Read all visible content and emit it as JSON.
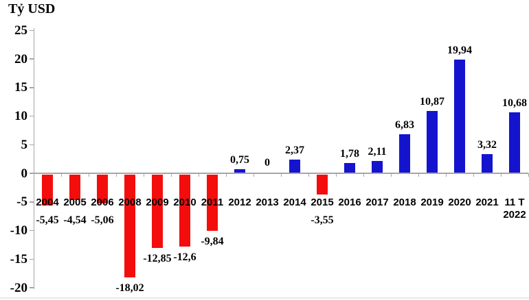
{
  "title": "Tỷ USD",
  "colors": {
    "positive_bar": "#1414CE",
    "negative_bar": "#F40D0D",
    "axis": "#A6A6A6",
    "text": "#000000",
    "background": "#FFFFFF"
  },
  "chart_data": {
    "type": "bar",
    "title": "Tỷ USD",
    "ylabel": "Tỷ USD",
    "ylim": [
      -20,
      25
    ],
    "ytick_step": 5,
    "yticks": [
      25,
      20,
      15,
      10,
      5,
      0,
      -5,
      -10,
      -15,
      -20
    ],
    "grid": false,
    "legend": "none",
    "categories": [
      "2004",
      "2005",
      "2006",
      "2008",
      "2009",
      "2010",
      "2011",
      "2012",
      "2013",
      "2014",
      "2015",
      "2016",
      "2017",
      "2018",
      "2019",
      "2020",
      "2021",
      "11 T\n2022"
    ],
    "values": [
      -5.45,
      -4.54,
      -5.06,
      -18.02,
      -12.85,
      -12.6,
      -9.84,
      0.75,
      0,
      2.37,
      -3.55,
      1.78,
      2.11,
      6.83,
      10.87,
      19.94,
      3.32,
      10.68
    ],
    "value_labels": [
      "-5,45",
      "-4,54",
      "-5,06",
      "-18,02",
      "-12,85",
      "-12,6",
      "-9,84",
      "0,75",
      "0",
      "2,37",
      "-3,55",
      "1,78",
      "2,11",
      "6,83",
      "10,87",
      "19,94",
      "3,32",
      "10,68"
    ],
    "series_note": "negative values red, positive values blue"
  }
}
